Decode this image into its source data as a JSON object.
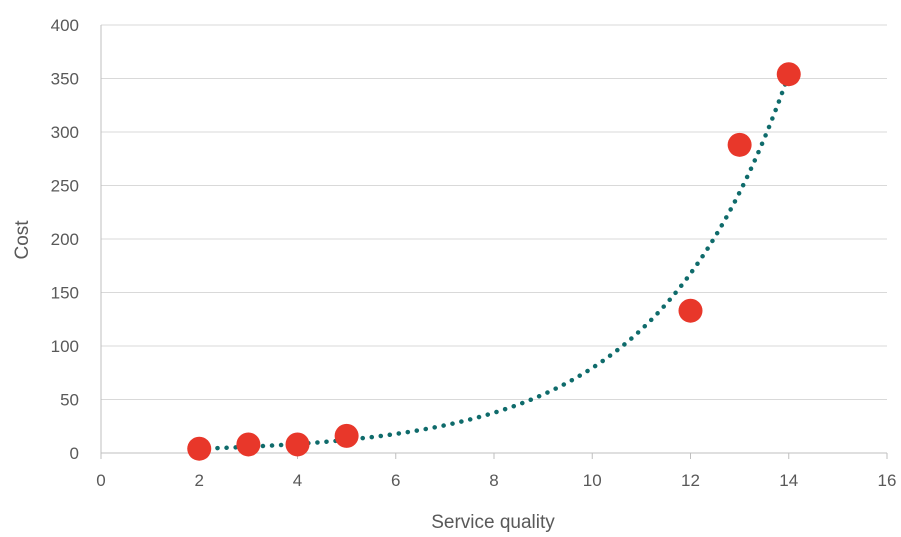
{
  "chart_data": {
    "type": "scatter",
    "xlabel": "Service quality",
    "ylabel": "Cost",
    "xlim": [
      0,
      16
    ],
    "ylim": [
      0,
      400
    ],
    "x_ticks": [
      0,
      2,
      4,
      6,
      8,
      10,
      12,
      14,
      16
    ],
    "y_ticks": [
      0,
      50,
      100,
      150,
      200,
      250,
      300,
      350,
      400
    ],
    "grid": "horizontal",
    "legend": "none",
    "series": [
      {
        "x": [
          2,
          3,
          4,
          5,
          12,
          13,
          14
        ],
        "y": [
          4,
          8,
          8,
          16,
          133,
          288,
          354
        ],
        "color": "#e8372a",
        "marker": "circle"
      }
    ],
    "trendline": {
      "type": "exponential",
      "style": "dotted",
      "color": "#0f6b6b",
      "x_range": [
        2,
        14
      ],
      "y_start": 4,
      "y_end": 354
    },
    "colors": {
      "grid": "#d9d9d9",
      "axis": "#bfbfbf",
      "text": "#595959"
    }
  }
}
